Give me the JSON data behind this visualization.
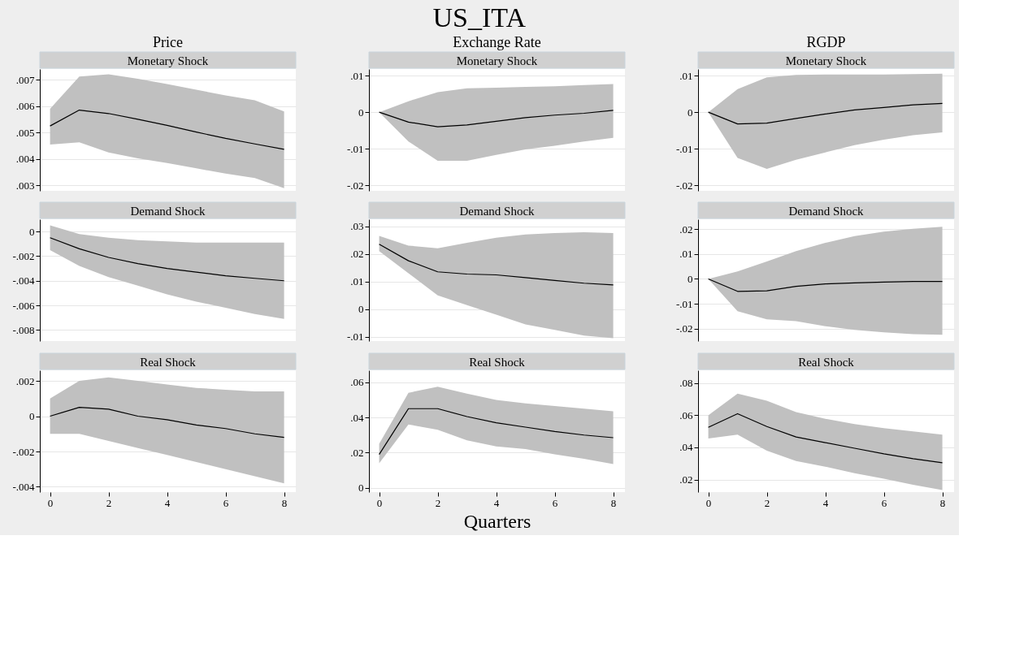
{
  "chart_data": [
    {
      "type": "line",
      "title": "Price",
      "subtitle": "Monetary Shock",
      "annotations": [
        "US_ITA"
      ],
      "x": [
        0,
        1,
        2,
        3,
        4,
        5,
        6,
        7,
        8
      ],
      "xlim": [
        -0.35,
        8.4
      ],
      "xticks": [
        0,
        2,
        4,
        6,
        8
      ],
      "ylim": [
        0.0028,
        0.0074
      ],
      "yticks": [
        {
          "value": 0.003,
          "label": ".003"
        },
        {
          "value": 0.004,
          "label": ".004"
        },
        {
          "value": 0.005,
          "label": ".005"
        },
        {
          "value": 0.006,
          "label": ".006"
        },
        {
          "value": 0.007,
          "label": ".007"
        }
      ],
      "grid": "y",
      "tick_labels": "y",
      "series": [
        {
          "color": "#000000",
          "values": [
            0.00525,
            0.00585,
            0.00572,
            0.0055,
            0.00527,
            0.00502,
            0.00478,
            0.00457,
            0.00437
          ],
          "upper": [
            0.0059,
            0.00712,
            0.0072,
            0.00703,
            0.00683,
            0.00662,
            0.0064,
            0.00622,
            0.0058
          ],
          "lower": [
            0.00455,
            0.00463,
            0.00425,
            0.00403,
            0.00385,
            0.00365,
            0.00345,
            0.00328,
            0.0029
          ]
        }
      ]
    },
    {
      "type": "line",
      "title": "Exchange Rate",
      "subtitle": "Monetary Shock",
      "x": [
        0,
        1,
        2,
        3,
        4,
        5,
        6,
        7,
        8
      ],
      "xlim": [
        -0.35,
        8.4
      ],
      "xticks": [
        0,
        2,
        4,
        6,
        8
      ],
      "ylim": [
        -0.0215,
        0.0118
      ],
      "yticks": [
        {
          "value": -0.02,
          "label": "-.02"
        },
        {
          "value": -0.01,
          "label": "-.01"
        },
        0,
        {
          "value": 0.01,
          "label": ".01"
        }
      ],
      "grid": "y",
      "tick_labels": "y",
      "series": [
        {
          "color": "#000000",
          "values": [
            0,
            -0.0027,
            -0.004,
            -0.0035,
            -0.0025,
            -0.0015,
            -0.0008,
            -0.0003,
            0.0005
          ],
          "upper": [
            0,
            0.003,
            0.0055,
            0.0065,
            0.0067,
            0.0069,
            0.0071,
            0.0074,
            0.0077
          ],
          "lower": [
            0,
            -0.008,
            -0.0133,
            -0.0133,
            -0.0117,
            -0.0102,
            -0.0092,
            -0.008,
            -0.007
          ]
        }
      ]
    },
    {
      "type": "line",
      "title": "RGDP",
      "subtitle": "Monetary Shock",
      "x": [
        0,
        1,
        2,
        3,
        4,
        5,
        6,
        7,
        8
      ],
      "xlim": [
        -0.35,
        8.4
      ],
      "xticks": [
        0,
        2,
        4,
        6,
        8
      ],
      "ylim": [
        -0.0215,
        0.0118
      ],
      "yticks": [
        {
          "value": -0.02,
          "label": "-.02"
        },
        {
          "value": -0.01,
          "label": "-.01"
        },
        0,
        {
          "value": 0.01,
          "label": ".01"
        }
      ],
      "grid": "y",
      "tick_labels": "y",
      "series": [
        {
          "color": "#000000",
          "values": [
            0,
            -0.0032,
            -0.003,
            -0.0017,
            -0.0005,
            0.0006,
            0.0013,
            0.002,
            0.0024
          ],
          "upper": [
            0,
            0.0063,
            0.0095,
            0.0102,
            0.0103,
            0.0103,
            0.0103,
            0.0104,
            0.0105
          ],
          "lower": [
            0,
            -0.0125,
            -0.0155,
            -0.013,
            -0.011,
            -0.009,
            -0.0075,
            -0.0063,
            -0.0055
          ]
        }
      ]
    },
    {
      "type": "line",
      "title": "Demand Shock",
      "x": [
        0,
        1,
        2,
        3,
        4,
        5,
        6,
        7,
        8
      ],
      "xlim": [
        -0.35,
        8.4
      ],
      "xticks": [
        0,
        2,
        4,
        6,
        8
      ],
      "ylim": [
        -0.0089,
        0.001
      ],
      "yticks": [
        {
          "value": -0.008,
          "label": "-.008"
        },
        {
          "value": -0.006,
          "label": "-.006"
        },
        {
          "value": -0.004,
          "label": "-.004"
        },
        {
          "value": -0.002,
          "label": "-.002"
        },
        0
      ],
      "grid": "y",
      "tick_labels": "y",
      "series": [
        {
          "color": "#000000",
          "values": [
            -0.0005,
            -0.0014,
            -0.0021,
            -0.0026,
            -0.003,
            -0.0033,
            -0.0036,
            -0.0038,
            -0.004
          ],
          "upper": [
            0.0005,
            -0.0002,
            -0.0005,
            -0.0007,
            -0.0008,
            -0.0009,
            -0.0009,
            -0.0009,
            -0.0009
          ],
          "lower": [
            -0.0015,
            -0.0028,
            -0.0037,
            -0.0044,
            -0.0051,
            -0.0057,
            -0.0062,
            -0.0067,
            -0.0071
          ]
        }
      ]
    },
    {
      "type": "line",
      "title": "Demand Shock",
      "x": [
        0,
        1,
        2,
        3,
        4,
        5,
        6,
        7,
        8
      ],
      "xlim": [
        -0.35,
        8.4
      ],
      "xticks": [
        0,
        2,
        4,
        6,
        8
      ],
      "ylim": [
        -0.0115,
        0.0325
      ],
      "yticks": [
        {
          "value": -0.01,
          "label": "-.01"
        },
        0,
        {
          "value": 0.01,
          "label": ".01"
        },
        {
          "value": 0.02,
          "label": ".02"
        },
        {
          "value": 0.03,
          "label": ".03"
        }
      ],
      "grid": "y",
      "tick_labels": "y",
      "series": [
        {
          "color": "#000000",
          "values": [
            0.0235,
            0.0175,
            0.0135,
            0.0127,
            0.0124,
            0.0114,
            0.0104,
            0.0094,
            0.0088
          ],
          "upper": [
            0.0265,
            0.023,
            0.022,
            0.024,
            0.0258,
            0.027,
            0.0275,
            0.0278,
            0.0275
          ],
          "lower": [
            0.021,
            0.013,
            0.005,
            0.0015,
            -0.002,
            -0.0055,
            -0.0075,
            -0.0095,
            -0.0105
          ]
        }
      ]
    },
    {
      "type": "line",
      "title": "Demand Shock",
      "x": [
        0,
        1,
        2,
        3,
        4,
        5,
        6,
        7,
        8
      ],
      "xlim": [
        -0.35,
        8.4
      ],
      "xticks": [
        0,
        2,
        4,
        6,
        8
      ],
      "ylim": [
        -0.025,
        0.024
      ],
      "yticks": [
        {
          "value": -0.02,
          "label": "-.02"
        },
        {
          "value": -0.01,
          "label": "-.01"
        },
        0,
        {
          "value": 0.01,
          "label": ".01"
        },
        {
          "value": 0.02,
          "label": ".02"
        }
      ],
      "grid": "y",
      "tick_labels": "y",
      "series": [
        {
          "color": "#000000",
          "values": [
            0,
            -0.005,
            -0.0048,
            -0.003,
            -0.002,
            -0.0016,
            -0.0013,
            -0.001,
            -0.001
          ],
          "upper": [
            0,
            0.003,
            0.007,
            0.0112,
            0.0145,
            0.0172,
            0.019,
            0.0202,
            0.021
          ],
          "lower": [
            0,
            -0.013,
            -0.0163,
            -0.017,
            -0.019,
            -0.0205,
            -0.0215,
            -0.0222,
            -0.0225
          ]
        }
      ]
    },
    {
      "type": "line",
      "title": "Real Shock",
      "x": [
        0,
        1,
        2,
        3,
        4,
        5,
        6,
        7,
        8
      ],
      "xlim": [
        -0.35,
        8.4
      ],
      "xticks": [
        0,
        2,
        4,
        6,
        8
      ],
      "ylim": [
        -0.0043,
        0.0026
      ],
      "yticks": [
        {
          "value": -0.004,
          "label": "-.004"
        },
        {
          "value": -0.002,
          "label": "-.002"
        },
        0,
        {
          "value": 0.002,
          "label": ".002"
        }
      ],
      "grid": "y",
      "series": [
        {
          "color": "#000000",
          "values": [
            0,
            0.0005,
            0.0004,
            0,
            -0.0002,
            -0.0005,
            -0.0007,
            -0.001,
            -0.0012
          ],
          "upper": [
            0.001,
            0.002,
            0.0022,
            0.002,
            0.0018,
            0.0016,
            0.0015,
            0.0014,
            0.0014
          ],
          "lower": [
            -0.001,
            -0.001,
            -0.0014,
            -0.0018,
            -0.0022,
            -0.0026,
            -0.003,
            -0.0034,
            -0.0038
          ]
        }
      ]
    },
    {
      "type": "line",
      "title": "Real Shock",
      "xlabel": "Quarters",
      "x": [
        0,
        1,
        2,
        3,
        4,
        5,
        6,
        7,
        8
      ],
      "xlim": [
        -0.35,
        8.4
      ],
      "xticks": [
        0,
        2,
        4,
        6,
        8
      ],
      "ylim": [
        -0.0024,
        0.0668
      ],
      "yticks": [
        0,
        {
          "value": 0.02,
          "label": ".02"
        },
        {
          "value": 0.04,
          "label": ".04"
        },
        {
          "value": 0.06,
          "label": ".06"
        }
      ],
      "grid": "y",
      "series": [
        {
          "color": "#000000",
          "values": [
            0.019,
            0.045,
            0.045,
            0.0405,
            0.037,
            0.0345,
            0.032,
            0.03,
            0.0285
          ],
          "upper": [
            0.025,
            0.054,
            0.0575,
            0.0535,
            0.05,
            0.048,
            0.0465,
            0.045,
            0.0435
          ],
          "lower": [
            0.014,
            0.036,
            0.033,
            0.027,
            0.0235,
            0.022,
            0.019,
            0.0165,
            0.0135
          ]
        }
      ]
    },
    {
      "type": "line",
      "title": "Real Shock",
      "x": [
        0,
        1,
        2,
        3,
        4,
        5,
        6,
        7,
        8
      ],
      "xlim": [
        -0.35,
        8.4
      ],
      "xticks": [
        0,
        2,
        4,
        6,
        8
      ],
      "ylim": [
        0.0122,
        0.088
      ],
      "yticks": [
        {
          "value": 0.02,
          "label": ".02"
        },
        {
          "value": 0.04,
          "label": ".04"
        },
        {
          "value": 0.06,
          "label": ".06"
        },
        {
          "value": 0.08,
          "label": ".08"
        }
      ],
      "grid": "y",
      "series": [
        {
          "color": "#000000",
          "values": [
            0.0525,
            0.061,
            0.053,
            0.0465,
            0.043,
            0.0395,
            0.036,
            0.033,
            0.0305
          ],
          "upper": [
            0.06,
            0.0735,
            0.069,
            0.062,
            0.0578,
            0.0545,
            0.052,
            0.05,
            0.048
          ],
          "lower": [
            0.0455,
            0.048,
            0.038,
            0.0315,
            0.028,
            0.024,
            0.0205,
            0.0168,
            0.0135
          ]
        }
      ]
    }
  ]
}
